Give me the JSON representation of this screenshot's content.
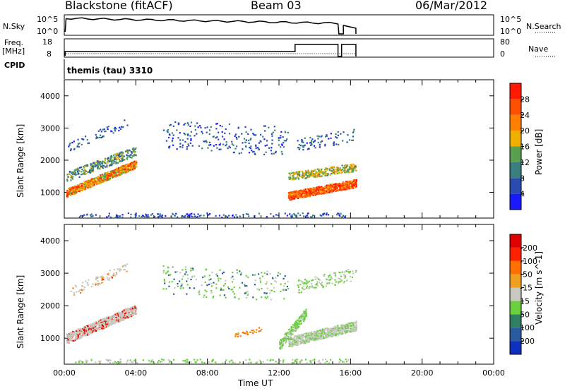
{
  "header": {
    "station": "Blackstone (fitACF)",
    "beam": "Beam 03",
    "date": "06/Mar/2012"
  },
  "strip_labels": {
    "nsky": "N.Sky",
    "freq": "Freq.",
    "mhz": "[MHz]",
    "cpid": "CPID",
    "nsearch": "N.Search",
    "nave": "Nave",
    "cpid_value": "themis (tau) 3310"
  },
  "strip_ticks": {
    "nsky_top": "10^5",
    "nsky_bottom": "10^0",
    "freq_top": "18",
    "freq_bottom": "8",
    "nave_top": "80",
    "nave_bottom": "0"
  },
  "chart_data": [
    {
      "type": "heatmap",
      "title": "Power",
      "quantity": "power",
      "ylabel": "Slant Range [km]",
      "xlabel": "",
      "colorbar_label": "Power [dB]",
      "yticks": [
        "1000",
        "2000",
        "3000",
        "4000"
      ],
      "colorbar_ticks": [
        "4",
        "8",
        "12",
        "16",
        "20",
        "24",
        "28"
      ],
      "colorbar_colors": [
        "#1a1aff",
        "#2a4bb0",
        "#3a7f80",
        "#5aa050",
        "#f0b000",
        "#ff8000",
        "#ff5000",
        "#ff1a00"
      ],
      "clim": [
        0,
        32
      ],
      "x_range_hours": [
        0,
        24
      ],
      "y_range_km": [
        200,
        4500
      ]
    },
    {
      "type": "heatmap",
      "title": "Velocity",
      "quantity": "velocity",
      "ylabel": "Slant Range [km]",
      "xlabel": "Time UT",
      "colorbar_label": "Velocity [m s^-1]",
      "yticks": [
        "1000",
        "2000",
        "3000",
        "4000"
      ],
      "colorbar_ticks": [
        "200",
        "100",
        "50",
        "15",
        "-15",
        "-50",
        "-100",
        "-200"
      ],
      "colorbar_colors": [
        "#1030c0",
        "#2a5aa0",
        "#2f8060",
        "#6ad040",
        "#c8c8c0",
        "#f0a020",
        "#ff7000",
        "#ff2000",
        "#e00000"
      ],
      "xticks": [
        "00:00",
        "04:00",
        "08:00",
        "12:00",
        "16:00",
        "20:00",
        "00:00"
      ],
      "x_range_hours": [
        0,
        24
      ],
      "y_range_km": [
        200,
        4500
      ]
    }
  ]
}
